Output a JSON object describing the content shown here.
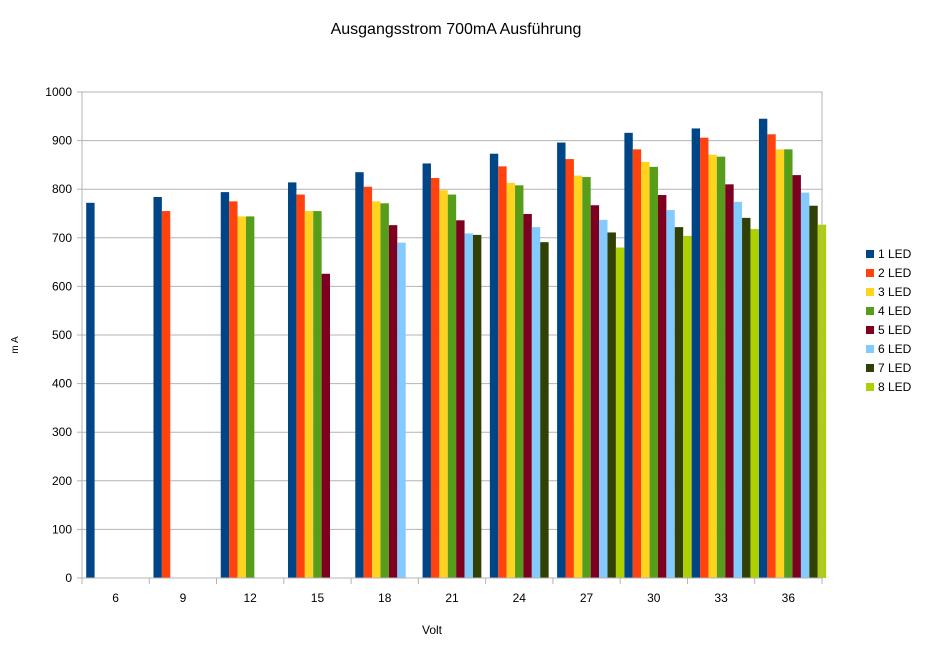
{
  "chart_data": {
    "type": "bar",
    "title": "Ausgangsstrom 700mA Ausführung",
    "xlabel": "Volt",
    "ylabel": "m A",
    "ylim": [
      0,
      1000
    ],
    "ytick_step": 100,
    "grid": true,
    "legend_position": "right",
    "categories": [
      "6",
      "9",
      "12",
      "15",
      "18",
      "21",
      "24",
      "27",
      "30",
      "33",
      "36"
    ],
    "series": [
      {
        "name": "1 LED",
        "color": "#004586",
        "values": [
          772,
          784,
          794,
          814,
          835,
          853,
          873,
          896,
          916,
          925,
          945
        ]
      },
      {
        "name": "2 LED",
        "color": "#ff420e",
        "values": [
          null,
          755,
          775,
          789,
          805,
          823,
          847,
          862,
          882,
          906,
          913
        ]
      },
      {
        "name": "3 LED",
        "color": "#ffd320",
        "values": [
          null,
          null,
          744,
          755,
          775,
          798,
          813,
          828,
          856,
          871,
          882
        ]
      },
      {
        "name": "4 LED",
        "color": "#579d1c",
        "values": [
          null,
          null,
          744,
          755,
          771,
          789,
          808,
          825,
          846,
          867,
          882
        ]
      },
      {
        "name": "5 LED",
        "color": "#7e0021",
        "values": [
          null,
          null,
          null,
          626,
          726,
          736,
          749,
          767,
          788,
          810,
          829
        ]
      },
      {
        "name": "6 LED",
        "color": "#83caff",
        "values": [
          null,
          null,
          null,
          null,
          690,
          709,
          722,
          737,
          757,
          774,
          793
        ]
      },
      {
        "name": "7 LED",
        "color": "#314004",
        "values": [
          null,
          null,
          null,
          null,
          null,
          706,
          691,
          711,
          722,
          741,
          766
        ]
      },
      {
        "name": "8 LED",
        "color": "#aecf00",
        "values": [
          null,
          null,
          null,
          null,
          null,
          null,
          null,
          680,
          704,
          718,
          727
        ]
      }
    ]
  }
}
